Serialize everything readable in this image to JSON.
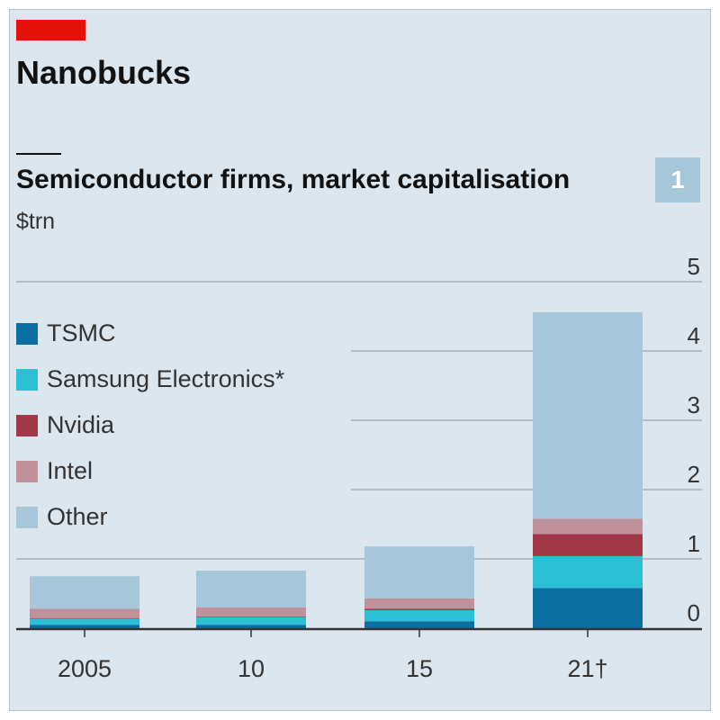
{
  "title": "Nanobucks",
  "badge": "1",
  "chart_data": {
    "type": "bar",
    "stacked": true,
    "title": "Semiconductor firms, market capitalisation",
    "ylabel": "$trn",
    "xlabel": "",
    "ylim": [
      0,
      5
    ],
    "yticks": [
      0,
      1,
      2,
      3,
      4,
      5
    ],
    "categories": [
      "2005",
      "10",
      "15",
      "21†"
    ],
    "legend_position": "left",
    "series": [
      {
        "name": "TSMC",
        "color": "#0b6ea0",
        "values": [
          0.05,
          0.05,
          0.1,
          0.58
        ]
      },
      {
        "name": "Samsung Electronics*",
        "color": "#2cc0d6",
        "values": [
          0.08,
          0.11,
          0.16,
          0.46
        ]
      },
      {
        "name": "Nvidia",
        "color": "#a03848",
        "values": [
          0.01,
          0.01,
          0.02,
          0.32
        ]
      },
      {
        "name": "Intel",
        "color": "#c0919a",
        "values": [
          0.14,
          0.13,
          0.15,
          0.22
        ]
      },
      {
        "name": "Other",
        "color": "#a6c6da",
        "values": [
          0.47,
          0.53,
          0.75,
          2.98
        ]
      }
    ]
  }
}
